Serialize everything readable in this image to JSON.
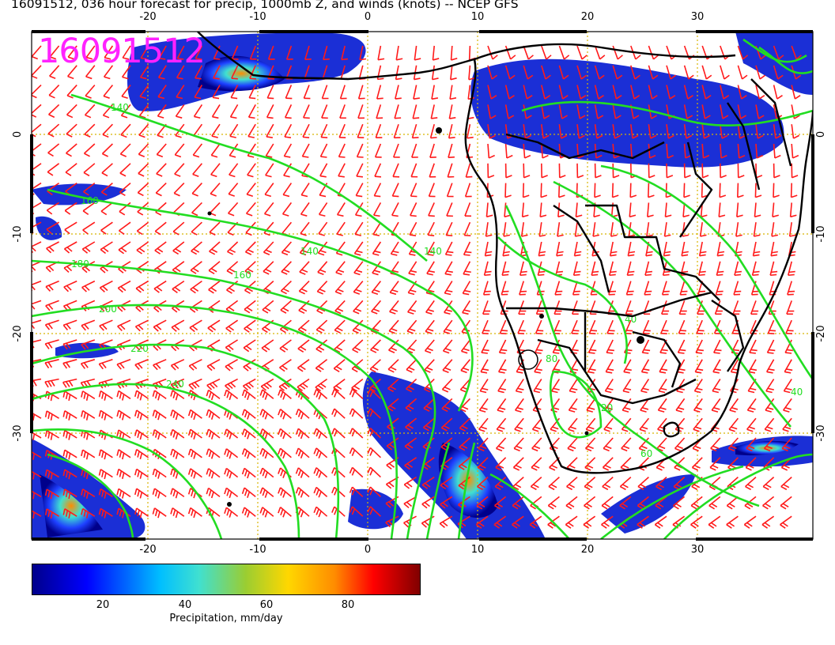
{
  "title": "16091512, 036 hour forecast for precip, 1000mb Z, and winds (knots) -- NCEP GFS",
  "stamp": "16091512",
  "map": {
    "lon_range": [
      -30,
      40
    ],
    "lat_range": [
      -40,
      10
    ],
    "lon_ticks": [
      "-20",
      "-10",
      "0",
      "10",
      "20",
      "30"
    ],
    "lat_ticks": [
      "0",
      "-10",
      "-20",
      "-30"
    ],
    "grid_lon": [
      -20,
      -10,
      0,
      10,
      20,
      30
    ],
    "grid_lat": [
      0,
      -10,
      -20,
      -30
    ],
    "contour_labels": [
      "140",
      "160",
      "180",
      "200",
      "220",
      "240",
      "140",
      "160",
      "140",
      "80",
      "60",
      "40",
      "20",
      "40"
    ],
    "colors": {
      "barbs": "#ff1a1a",
      "contours": "#22dd22",
      "coast": "#000000",
      "grid": "#d8b400",
      "stamp": "#ff22ff"
    }
  },
  "colorbar": {
    "ticks": [
      "20",
      "40",
      "60",
      "80"
    ],
    "label": "Precipitation, mm/day",
    "range": [
      0,
      100
    ],
    "colors": [
      "#00008b",
      "#0000ff",
      "#00bfff",
      "#40e0d0",
      "#9acd32",
      "#ffd700",
      "#ff8c00",
      "#ff0000",
      "#800000"
    ]
  }
}
